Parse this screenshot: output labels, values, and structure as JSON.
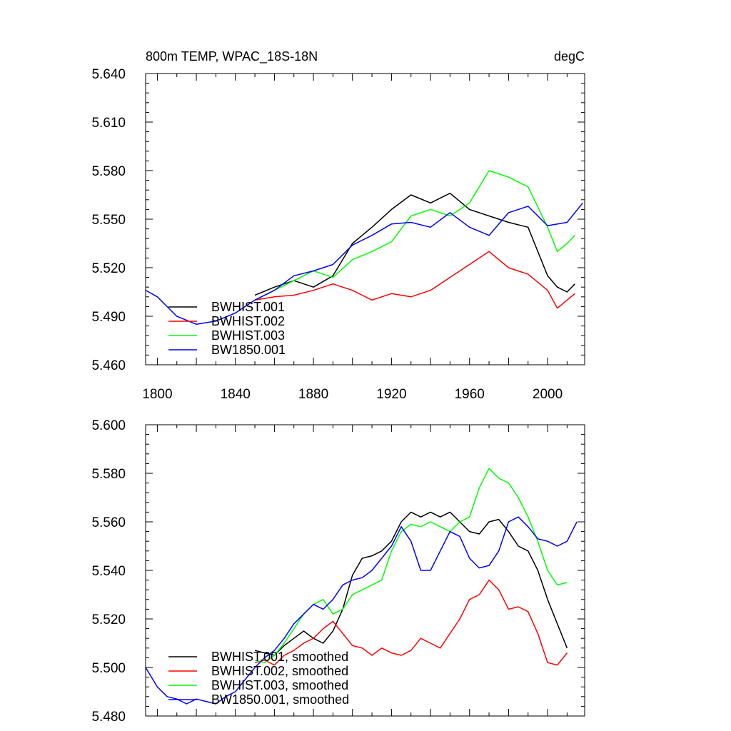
{
  "colors": {
    "BWHIST.001": "#000000",
    "BWHIST.002": "#ff0000",
    "BWHIST.003": "#00ff00",
    "BW1850.001": "#0000ff"
  },
  "chart_data": [
    {
      "type": "line",
      "title_left": "800m TEMP, WPAC_18S-18N",
      "title_right": "degC",
      "xlim": [
        1794,
        2019
      ],
      "ylim": [
        5.46,
        5.64
      ],
      "y_ticks": [
        "5.640",
        "5.610",
        "5.580",
        "5.550",
        "5.520",
        "5.490",
        "5.460"
      ],
      "x_ticks": [
        "1800",
        "1840",
        "1880",
        "1920",
        "1960",
        "2000"
      ],
      "grid": false,
      "legend_position": "bottom-left",
      "series": [
        {
          "name": "BWHIST.001",
          "x": [
            1850,
            1860,
            1870,
            1880,
            1890,
            1900,
            1910,
            1920,
            1930,
            1940,
            1950,
            1960,
            1970,
            1980,
            1990,
            2000,
            2005,
            2010,
            2014
          ],
          "y": [
            5.503,
            5.508,
            5.512,
            5.508,
            5.515,
            5.535,
            5.545,
            5.556,
            5.565,
            5.56,
            5.566,
            5.556,
            5.552,
            5.548,
            5.545,
            5.515,
            5.508,
            5.505,
            5.51
          ]
        },
        {
          "name": "BWHIST.002",
          "x": [
            1850,
            1860,
            1870,
            1880,
            1890,
            1900,
            1910,
            1920,
            1930,
            1940,
            1950,
            1960,
            1970,
            1980,
            1990,
            2000,
            2005,
            2010,
            2014
          ],
          "y": [
            5.5,
            5.502,
            5.503,
            5.506,
            5.51,
            5.506,
            5.5,
            5.504,
            5.502,
            5.506,
            5.514,
            5.522,
            5.53,
            5.52,
            5.516,
            5.506,
            5.495,
            5.5,
            5.504
          ]
        },
        {
          "name": "BWHIST.003",
          "x": [
            1850,
            1860,
            1870,
            1880,
            1890,
            1900,
            1910,
            1920,
            1930,
            1940,
            1950,
            1960,
            1970,
            1980,
            1990,
            2000,
            2005,
            2010,
            2014
          ],
          "y": [
            5.5,
            5.506,
            5.512,
            5.518,
            5.514,
            5.525,
            5.53,
            5.536,
            5.552,
            5.556,
            5.552,
            5.56,
            5.58,
            5.576,
            5.57,
            5.545,
            5.53,
            5.535,
            5.54
          ]
        },
        {
          "name": "BW1850.001",
          "x": [
            1794,
            1800,
            1810,
            1820,
            1830,
            1840,
            1850,
            1860,
            1870,
            1880,
            1890,
            1900,
            1910,
            1920,
            1930,
            1940,
            1950,
            1960,
            1970,
            1980,
            1990,
            2000,
            2010,
            2018
          ],
          "y": [
            5.506,
            5.502,
            5.49,
            5.485,
            5.487,
            5.492,
            5.5,
            5.506,
            5.515,
            5.518,
            5.522,
            5.534,
            5.54,
            5.547,
            5.548,
            5.545,
            5.554,
            5.545,
            5.54,
            5.554,
            5.558,
            5.546,
            5.548,
            5.56
          ]
        }
      ],
      "legend": [
        "BWHIST.001",
        "BWHIST.002",
        "BWHIST.003",
        "BW1850.001"
      ]
    },
    {
      "type": "line",
      "xlim": [
        1794,
        2019
      ],
      "ylim": [
        5.48,
        5.6
      ],
      "y_ticks": [
        "5.600",
        "5.580",
        "5.560",
        "5.540",
        "5.520",
        "5.500",
        "5.480"
      ],
      "grid": false,
      "legend_position": "bottom-left",
      "series": [
        {
          "name": "BWHIST.001, smoothed",
          "x": [
            1850,
            1855,
            1860,
            1865,
            1870,
            1875,
            1880,
            1885,
            1890,
            1895,
            1900,
            1905,
            1910,
            1915,
            1920,
            1925,
            1930,
            1935,
            1940,
            1945,
            1950,
            1955,
            1960,
            1965,
            1970,
            1975,
            1980,
            1985,
            1990,
            1995,
            2000,
            2005,
            2010
          ],
          "y": [
            5.507,
            5.506,
            5.505,
            5.509,
            5.512,
            5.515,
            5.512,
            5.51,
            5.515,
            5.524,
            5.538,
            5.545,
            5.546,
            5.548,
            5.552,
            5.56,
            5.564,
            5.562,
            5.564,
            5.562,
            5.564,
            5.56,
            5.556,
            5.555,
            5.56,
            5.561,
            5.556,
            5.55,
            5.548,
            5.54,
            5.528,
            5.518,
            5.508
          ]
        },
        {
          "name": "BWHIST.002, smoothed",
          "x": [
            1850,
            1855,
            1860,
            1865,
            1870,
            1875,
            1880,
            1885,
            1890,
            1895,
            1900,
            1905,
            1910,
            1915,
            1920,
            1925,
            1930,
            1935,
            1940,
            1945,
            1950,
            1955,
            1960,
            1965,
            1970,
            1975,
            1980,
            1985,
            1990,
            1995,
            2000,
            2005,
            2010
          ],
          "y": [
            5.502,
            5.503,
            5.501,
            5.505,
            5.507,
            5.51,
            5.512,
            5.516,
            5.519,
            5.514,
            5.509,
            5.508,
            5.505,
            5.508,
            5.506,
            5.505,
            5.507,
            5.512,
            5.51,
            5.508,
            5.514,
            5.52,
            5.528,
            5.53,
            5.536,
            5.532,
            5.524,
            5.525,
            5.523,
            5.514,
            5.502,
            5.501,
            5.506
          ]
        },
        {
          "name": "BWHIST.003, smoothed",
          "x": [
            1850,
            1855,
            1860,
            1865,
            1870,
            1875,
            1880,
            1885,
            1890,
            1895,
            1900,
            1905,
            1910,
            1915,
            1920,
            1925,
            1930,
            1935,
            1940,
            1945,
            1950,
            1955,
            1960,
            1965,
            1970,
            1975,
            1980,
            1985,
            1990,
            1995,
            2000,
            2005,
            2010
          ],
          "y": [
            5.503,
            5.502,
            5.505,
            5.51,
            5.516,
            5.522,
            5.526,
            5.528,
            5.522,
            5.524,
            5.53,
            5.532,
            5.534,
            5.536,
            5.548,
            5.556,
            5.559,
            5.558,
            5.56,
            5.558,
            5.556,
            5.56,
            5.562,
            5.574,
            5.582,
            5.578,
            5.576,
            5.57,
            5.562,
            5.552,
            5.54,
            5.534,
            5.535
          ]
        },
        {
          "name": "BW1850.001, smoothed",
          "x": [
            1794,
            1800,
            1805,
            1810,
            1815,
            1820,
            1825,
            1830,
            1835,
            1840,
            1845,
            1850,
            1855,
            1860,
            1865,
            1870,
            1875,
            1880,
            1885,
            1890,
            1895,
            1900,
            1905,
            1910,
            1915,
            1920,
            1925,
            1930,
            1935,
            1940,
            1945,
            1950,
            1955,
            1960,
            1965,
            1970,
            1975,
            1980,
            1985,
            1990,
            1995,
            2000,
            2005,
            2010,
            2015
          ],
          "y": [
            5.5,
            5.492,
            5.488,
            5.487,
            5.485,
            5.487,
            5.486,
            5.485,
            5.488,
            5.49,
            5.495,
            5.5,
            5.504,
            5.507,
            5.512,
            5.518,
            5.522,
            5.526,
            5.524,
            5.528,
            5.534,
            5.536,
            5.537,
            5.54,
            5.545,
            5.55,
            5.558,
            5.552,
            5.54,
            5.54,
            5.548,
            5.556,
            5.554,
            5.545,
            5.541,
            5.542,
            5.548,
            5.56,
            5.562,
            5.558,
            5.553,
            5.552,
            5.55,
            5.552,
            5.56
          ]
        }
      ],
      "legend": [
        "BWHIST.001, smoothed",
        "BWHIST.002, smoothed",
        "BWHIST.003, smoothed",
        "BW1850.001, smoothed"
      ]
    }
  ]
}
